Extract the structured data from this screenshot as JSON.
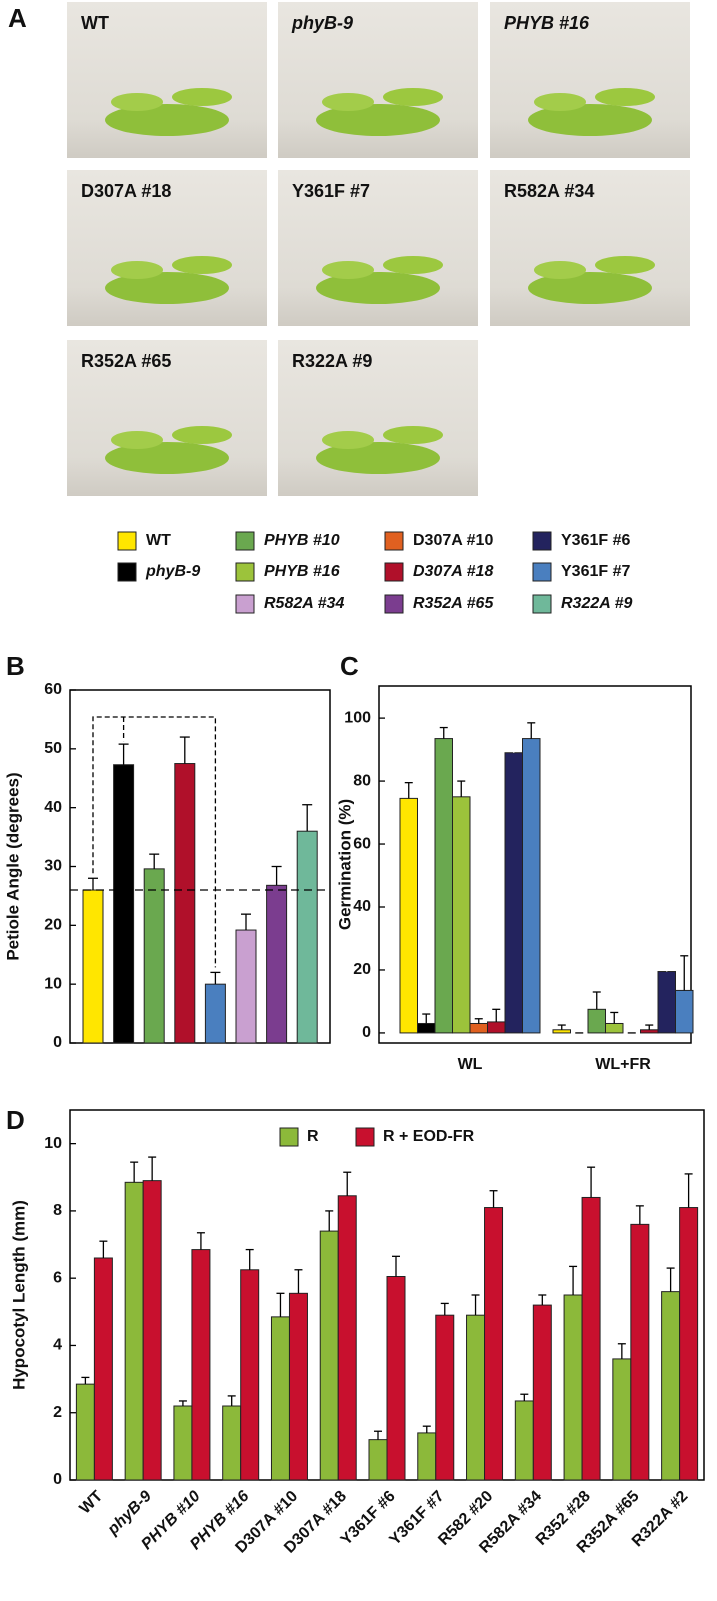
{
  "panel_letters": [
    "A",
    "B",
    "C",
    "D"
  ],
  "photos": [
    {
      "label": "WT"
    },
    {
      "label": "phyB-9"
    },
    {
      "label": "PHYB #16"
    },
    {
      "label": "D307A #18"
    },
    {
      "label": "Y361F #7"
    },
    {
      "label": "R582A #34"
    },
    {
      "label": "R352A #65"
    },
    {
      "label": "R322A #9"
    }
  ],
  "legend": [
    {
      "label": "WT",
      "color": "#ffe600"
    },
    {
      "label": "phyB-9",
      "color": "#000000"
    },
    {
      "label": "PHYB #10",
      "color": "#6aa84f"
    },
    {
      "label": "PHYB #16",
      "color": "#9cc33b"
    },
    {
      "label": "R582A #34",
      "color": "#c9a0d0"
    },
    {
      "label": "D307A #10",
      "color": "#e06020"
    },
    {
      "label": "D307A #18",
      "color": "#b0102a"
    },
    {
      "label": "R352A #65",
      "color": "#7b3d8f"
    },
    {
      "label": "Y361F #6",
      "color": "#23235e"
    },
    {
      "label": "Y361F #7",
      "color": "#4a7fbf"
    },
    {
      "label": "R322A #9",
      "color": "#6fb89a"
    }
  ],
  "chart_data": [
    {
      "type": "bar",
      "y_label": "Petiole Angle (degrees)",
      "values": [
        26,
        47.3,
        29.6,
        47.5,
        10,
        19.2,
        26.8,
        36
      ],
      "errors": [
        2,
        3.5,
        2.5,
        4.5,
        2,
        2.7,
        3.2,
        4.5
      ],
      "colors": [
        "#ffe600",
        "#000000",
        "#6aa84f",
        "#b0102a",
        "#4a7fbf",
        "#c9a0d0",
        "#7b3d8f",
        "#6fb89a"
      ],
      "ref_line": 26,
      "ylim": [
        0,
        60
      ],
      "yticks": [
        0,
        10,
        20,
        30,
        40,
        50,
        60
      ]
    },
    {
      "type": "bar",
      "y_label": "Germination (%)",
      "categories": [
        "WL",
        "WL+FR"
      ],
      "series": [
        {
          "color": "#ffe600",
          "values": [
            74.5,
            1
          ],
          "errors": [
            5,
            1.5
          ]
        },
        {
          "color": "#000000",
          "values": [
            3,
            0
          ],
          "errors": [
            3,
            0
          ]
        },
        {
          "color": "#6aa84f",
          "values": [
            93.5,
            7.5
          ],
          "errors": [
            3.5,
            5.5
          ]
        },
        {
          "color": "#9cc33b",
          "values": [
            75,
            3
          ],
          "errors": [
            5,
            3.5
          ]
        },
        {
          "color": "#e06020",
          "values": [
            3,
            0
          ],
          "errors": [
            1.5,
            0
          ]
        },
        {
          "color": "#b0102a",
          "values": [
            3.5,
            1
          ],
          "errors": [
            4,
            1.5
          ]
        },
        {
          "color": "#23235e",
          "values": [
            89,
            19.5
          ],
          "errors": [
            11,
            10
          ]
        },
        {
          "color": "#4a7fbf",
          "values": [
            93.5,
            13.5
          ],
          "errors": [
            5,
            11
          ]
        }
      ],
      "ylim": [
        -3.2,
        110.2
      ],
      "yticks": [
        0,
        20,
        40,
        60,
        80,
        100
      ]
    },
    {
      "type": "bar",
      "y_label": "Hypocotyl Length (mm)",
      "categories": [
        "WT",
        "phyB-9",
        "PHYB #10",
        "PHYB #16",
        "D307A #10",
        "D307A #18",
        "Y361F #6",
        "Y361F #7",
        "R582 #20",
        "R582A #34",
        "R352 #28",
        "R352A #65",
        "R322A #2"
      ],
      "series": [
        {
          "name": "R",
          "color": "#8cb93a",
          "values": [
            2.85,
            8.85,
            2.2,
            2.2,
            4.85,
            7.4,
            1.2,
            1.4,
            4.9,
            2.35,
            5.5,
            3.6,
            5.6
          ],
          "errors": [
            0.2,
            0.6,
            0.15,
            0.3,
            0.7,
            0.6,
            0.25,
            0.2,
            0.6,
            0.2,
            0.85,
            0.45,
            0.7
          ]
        },
        {
          "name": "R + EOD-FR",
          "color": "#c8102e",
          "values": [
            6.6,
            8.9,
            6.85,
            6.25,
            5.55,
            8.45,
            6.05,
            4.9,
            8.1,
            5.2,
            8.4,
            7.6,
            8.1
          ],
          "errors": [
            0.5,
            0.7,
            0.5,
            0.6,
            0.7,
            0.7,
            0.6,
            0.35,
            0.5,
            0.3,
            0.9,
            0.55,
            1.0
          ]
        }
      ],
      "legend": "upper center",
      "ylim": [
        0,
        11
      ],
      "yticks": [
        0,
        2,
        4,
        6,
        8,
        10
      ]
    }
  ]
}
